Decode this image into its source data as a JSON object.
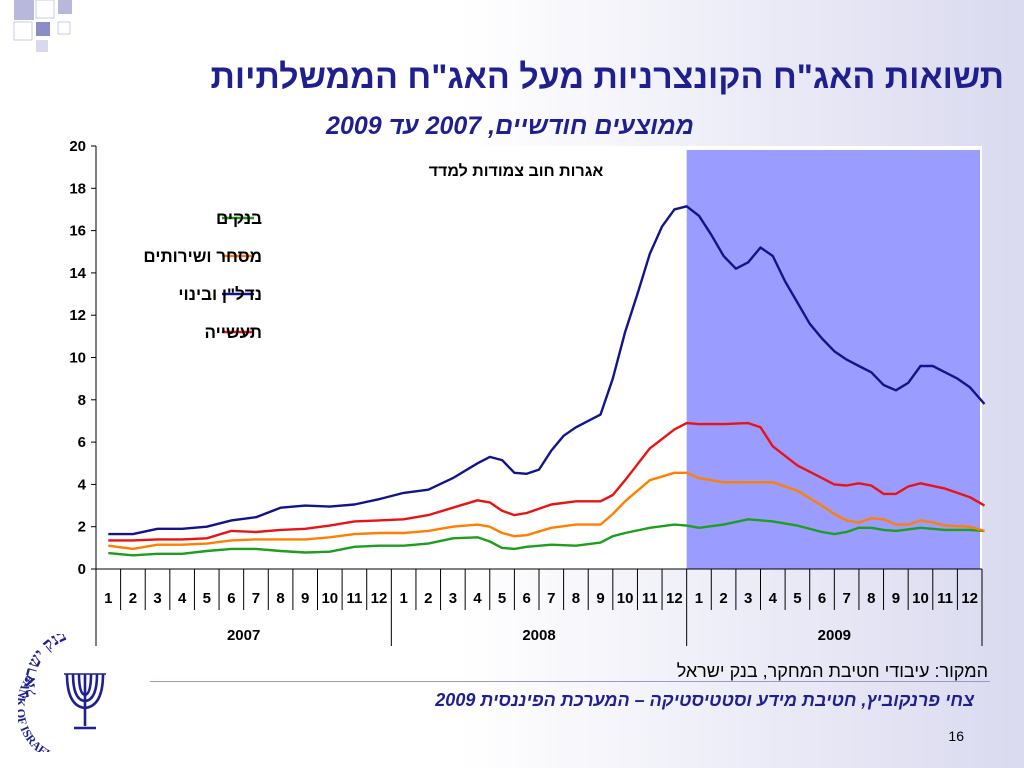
{
  "slide": {
    "title": "תשואות האג\"ח הקונצרניות מעל האג\"ח הממשלתיות",
    "subtitle": "ממוצעים חודשיים, 2007 עד 2009",
    "source": "המקור: עיבודי חטיבת המחקר, בנק ישראל",
    "author": "צחי פרנקוביץ, חטיבת מידע וסטטיסטיקה – המערכת הפיננסית 2009",
    "slide_number": "16",
    "logo_text_top": "בנק ישראל",
    "logo_text_bottom": "BANK OF ISRAEL"
  },
  "colors": {
    "title": "#1f1f8f",
    "highlight": "#9a9cff",
    "banks": "#1e9e1e",
    "commerce": "#ff7f00",
    "construction": "#14148a",
    "industry": "#e81414",
    "accent_squares": "#a3a3d2"
  },
  "chart_data": {
    "type": "line",
    "title": "אגרות חוב צמודות למדד",
    "ylim": [
      0,
      20
    ],
    "y_ticks": [
      0,
      2,
      4,
      6,
      8,
      10,
      12,
      14,
      16,
      18,
      20
    ],
    "x_month_labels": [
      "1",
      "2",
      "3",
      "4",
      "5",
      "6",
      "7",
      "8",
      "9",
      "10",
      "11",
      "12",
      "1",
      "2",
      "3",
      "4",
      "5",
      "6",
      "7",
      "8",
      "9",
      "10",
      "11",
      "12",
      "1",
      "2",
      "3",
      "4",
      "5",
      "6",
      "7",
      "8",
      "9",
      "10",
      "11",
      "12"
    ],
    "x_year_labels": [
      "2007",
      "2008",
      "2009"
    ],
    "highlight_range": "2009",
    "legend_position": "top-left",
    "series": [
      {
        "name": "בנקים",
        "color": "#1e9e1e",
        "points": [
          [
            0,
            0.75
          ],
          [
            1,
            0.65
          ],
          [
            2,
            0.72
          ],
          [
            3,
            0.72
          ],
          [
            4,
            0.85
          ],
          [
            5,
            0.95
          ],
          [
            6,
            0.95
          ],
          [
            7,
            0.85
          ],
          [
            8,
            0.78
          ],
          [
            9,
            0.82
          ],
          [
            10,
            1.05
          ],
          [
            11,
            1.1
          ],
          [
            12,
            1.1
          ],
          [
            13,
            1.2
          ],
          [
            14,
            1.45
          ],
          [
            15,
            1.5
          ],
          [
            15.5,
            1.3
          ],
          [
            16,
            1.0
          ],
          [
            16.5,
            0.95
          ],
          [
            17,
            1.05
          ],
          [
            18,
            1.15
          ],
          [
            19,
            1.1
          ],
          [
            20,
            1.25
          ],
          [
            20.5,
            1.55
          ],
          [
            21,
            1.7
          ],
          [
            22,
            1.95
          ],
          [
            23,
            2.1
          ],
          [
            23.5,
            2.05
          ],
          [
            24,
            1.95
          ],
          [
            25,
            2.1
          ],
          [
            26,
            2.35
          ],
          [
            27,
            2.25
          ],
          [
            28,
            2.05
          ],
          [
            29,
            1.75
          ],
          [
            29.5,
            1.65
          ],
          [
            30,
            1.75
          ],
          [
            30.5,
            1.95
          ],
          [
            31,
            1.95
          ],
          [
            31.5,
            1.85
          ],
          [
            32,
            1.8
          ],
          [
            33,
            1.95
          ],
          [
            34,
            1.85
          ],
          [
            35,
            1.85
          ],
          [
            35.6,
            1.8
          ]
        ]
      },
      {
        "name": "מסחר ושירותים",
        "color": "#ff7f00",
        "points": [
          [
            0,
            1.1
          ],
          [
            1,
            0.95
          ],
          [
            2,
            1.15
          ],
          [
            3,
            1.15
          ],
          [
            4,
            1.2
          ],
          [
            5,
            1.35
          ],
          [
            6,
            1.4
          ],
          [
            7,
            1.4
          ],
          [
            8,
            1.4
          ],
          [
            9,
            1.5
          ],
          [
            10,
            1.65
          ],
          [
            11,
            1.7
          ],
          [
            12,
            1.7
          ],
          [
            13,
            1.8
          ],
          [
            14,
            2.0
          ],
          [
            15,
            2.1
          ],
          [
            15.5,
            2.0
          ],
          [
            16,
            1.7
          ],
          [
            16.5,
            1.55
          ],
          [
            17,
            1.6
          ],
          [
            18,
            1.95
          ],
          [
            19,
            2.1
          ],
          [
            20,
            2.1
          ],
          [
            20.5,
            2.6
          ],
          [
            21,
            3.2
          ],
          [
            22,
            4.2
          ],
          [
            23,
            4.55
          ],
          [
            23.5,
            4.55
          ],
          [
            24,
            4.3
          ],
          [
            25,
            4.1
          ],
          [
            26,
            4.1
          ],
          [
            27,
            4.1
          ],
          [
            28,
            3.7
          ],
          [
            29,
            3.0
          ],
          [
            29.5,
            2.6
          ],
          [
            30,
            2.3
          ],
          [
            30.5,
            2.2
          ],
          [
            31,
            2.4
          ],
          [
            31.5,
            2.35
          ],
          [
            32,
            2.1
          ],
          [
            32.5,
            2.1
          ],
          [
            33,
            2.3
          ],
          [
            33.5,
            2.2
          ],
          [
            34,
            2.05
          ],
          [
            35,
            2.0
          ],
          [
            35.6,
            1.8
          ]
        ]
      },
      {
        "name": "נדל\"ן ובינוי",
        "color": "#14148a",
        "points": [
          [
            0,
            1.65
          ],
          [
            1,
            1.65
          ],
          [
            2,
            1.9
          ],
          [
            3,
            1.9
          ],
          [
            4,
            2.0
          ],
          [
            5,
            2.3
          ],
          [
            6,
            2.45
          ],
          [
            7,
            2.9
          ],
          [
            8,
            3.0
          ],
          [
            9,
            2.95
          ],
          [
            10,
            3.05
          ],
          [
            11,
            3.3
          ],
          [
            12,
            3.6
          ],
          [
            13,
            3.75
          ],
          [
            14,
            4.3
          ],
          [
            15,
            5.0
          ],
          [
            15.5,
            5.3
          ],
          [
            16,
            5.15
          ],
          [
            16.5,
            4.55
          ],
          [
            17,
            4.5
          ],
          [
            17.5,
            4.7
          ],
          [
            18,
            5.6
          ],
          [
            18.5,
            6.3
          ],
          [
            19,
            6.7
          ],
          [
            20,
            7.3
          ],
          [
            20.5,
            9.0
          ],
          [
            21,
            11.2
          ],
          [
            21.5,
            13.0
          ],
          [
            22,
            14.9
          ],
          [
            22.5,
            16.2
          ],
          [
            23,
            17.0
          ],
          [
            23.5,
            17.15
          ],
          [
            24,
            16.7
          ],
          [
            24.5,
            15.8
          ],
          [
            25,
            14.8
          ],
          [
            25.5,
            14.2
          ],
          [
            26,
            14.5
          ],
          [
            26.5,
            15.2
          ],
          [
            27,
            14.8
          ],
          [
            27.5,
            13.6
          ],
          [
            28,
            12.6
          ],
          [
            28.5,
            11.6
          ],
          [
            29,
            10.9
          ],
          [
            29.5,
            10.3
          ],
          [
            30,
            9.9
          ],
          [
            30.5,
            9.6
          ],
          [
            31,
            9.3
          ],
          [
            31.5,
            8.7
          ],
          [
            32,
            8.45
          ],
          [
            32.5,
            8.8
          ],
          [
            33,
            9.6
          ],
          [
            33.5,
            9.6
          ],
          [
            34,
            9.3
          ],
          [
            34.5,
            9.0
          ],
          [
            35,
            8.6
          ],
          [
            35.6,
            7.8
          ]
        ]
      },
      {
        "name": "תעשייה",
        "color": "#e81414",
        "points": [
          [
            0,
            1.35
          ],
          [
            1,
            1.35
          ],
          [
            2,
            1.4
          ],
          [
            3,
            1.4
          ],
          [
            4,
            1.45
          ],
          [
            5,
            1.8
          ],
          [
            6,
            1.75
          ],
          [
            7,
            1.85
          ],
          [
            8,
            1.9
          ],
          [
            9,
            2.05
          ],
          [
            10,
            2.25
          ],
          [
            11,
            2.3
          ],
          [
            12,
            2.35
          ],
          [
            13,
            2.55
          ],
          [
            14,
            2.9
          ],
          [
            15,
            3.25
          ],
          [
            15.5,
            3.15
          ],
          [
            16,
            2.75
          ],
          [
            16.5,
            2.55
          ],
          [
            17,
            2.65
          ],
          [
            18,
            3.05
          ],
          [
            19,
            3.2
          ],
          [
            20,
            3.2
          ],
          [
            20.5,
            3.5
          ],
          [
            21,
            4.2
          ],
          [
            22,
            5.7
          ],
          [
            23,
            6.6
          ],
          [
            23.5,
            6.9
          ],
          [
            24,
            6.85
          ],
          [
            25,
            6.85
          ],
          [
            26,
            6.9
          ],
          [
            26.5,
            6.7
          ],
          [
            27,
            5.8
          ],
          [
            28,
            4.9
          ],
          [
            29,
            4.3
          ],
          [
            29.5,
            4.0
          ],
          [
            30,
            3.95
          ],
          [
            30.5,
            4.05
          ],
          [
            31,
            3.95
          ],
          [
            31.5,
            3.55
          ],
          [
            32,
            3.55
          ],
          [
            32.5,
            3.9
          ],
          [
            33,
            4.05
          ],
          [
            34,
            3.8
          ],
          [
            35,
            3.4
          ],
          [
            35.6,
            3.0
          ]
        ]
      }
    ]
  }
}
